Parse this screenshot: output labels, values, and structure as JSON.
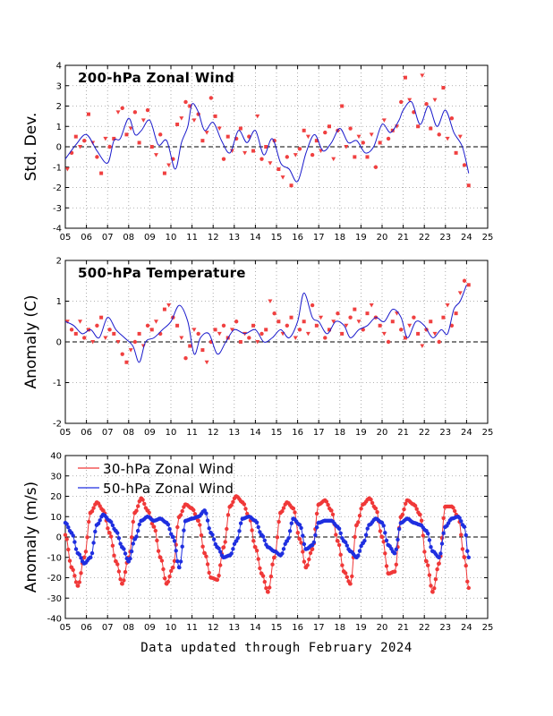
{
  "footer": "Data updated through February 2024",
  "colors": {
    "obs": "#f04040",
    "smooth": "#1a1acc",
    "blue": "#1f2fe0",
    "red": "#f03838"
  },
  "chart_data": [
    {
      "type": "scatter",
      "title": "200-hPa Zonal Wind",
      "xlabel": "",
      "ylabel": "Std. Dev.",
      "xlim": [
        2005,
        2025
      ],
      "ylim": [
        -4,
        4
      ],
      "xticks": [
        "05",
        "06",
        "07",
        "08",
        "09",
        "10",
        "11",
        "12",
        "13",
        "14",
        "15",
        "16",
        "17",
        "18",
        "19",
        "20",
        "21",
        "22",
        "23",
        "24",
        "25"
      ],
      "yticks": [
        -4,
        -3,
        -2,
        -1,
        0,
        1,
        2,
        3,
        4
      ],
      "zero_line": true,
      "grid": true,
      "smoothed_series": {
        "name": "",
        "x": [
          2005.0,
          2005.5,
          2006.0,
          2006.5,
          2007.0,
          2007.3,
          2007.6,
          2008.0,
          2008.3,
          2008.6,
          2009.0,
          2009.4,
          2009.8,
          2010.2,
          2010.5,
          2010.8,
          2011.0,
          2011.3,
          2011.6,
          2012.0,
          2012.4,
          2012.8,
          2013.2,
          2013.6,
          2014.0,
          2014.4,
          2014.8,
          2015.2,
          2015.6,
          2016.0,
          2016.4,
          2016.8,
          2017.2,
          2017.6,
          2018.0,
          2018.4,
          2018.8,
          2019.2,
          2019.6,
          2020.0,
          2020.4,
          2020.8,
          2021.0,
          2021.4,
          2021.8,
          2022.2,
          2022.6,
          2023.0,
          2023.4,
          2023.8,
          2024.1
        ],
        "y": [
          -0.6,
          0.1,
          0.6,
          -0.2,
          -0.8,
          0.3,
          0.4,
          1.4,
          0.6,
          0.8,
          1.3,
          0.1,
          0.3,
          -1.1,
          0.2,
          1.0,
          2.1,
          1.7,
          0.8,
          1.2,
          0.3,
          -0.3,
          0.8,
          0.2,
          0.8,
          -0.4,
          0.4,
          -0.8,
          -1.1,
          -1.7,
          -0.3,
          0.6,
          -0.2,
          0.2,
          0.9,
          0.2,
          0.3,
          -0.3,
          0.0,
          1.1,
          0.7,
          1.3,
          1.8,
          2.2,
          1.1,
          2.0,
          1.0,
          1.8,
          0.7,
          0.0,
          -1.3
        ]
      },
      "observations": {
        "x": [
          2005.1,
          2005.3,
          2005.5,
          2005.7,
          2005.9,
          2006.1,
          2006.3,
          2006.5,
          2006.7,
          2006.9,
          2007.1,
          2007.3,
          2007.5,
          2007.7,
          2007.9,
          2008.1,
          2008.3,
          2008.5,
          2008.7,
          2008.9,
          2009.1,
          2009.3,
          2009.5,
          2009.7,
          2009.9,
          2010.1,
          2010.3,
          2010.5,
          2010.7,
          2010.9,
          2011.1,
          2011.3,
          2011.5,
          2011.7,
          2011.9,
          2012.1,
          2012.3,
          2012.5,
          2012.7,
          2012.9,
          2013.1,
          2013.3,
          2013.5,
          2013.7,
          2013.9,
          2014.1,
          2014.3,
          2014.5,
          2014.7,
          2014.9,
          2015.1,
          2015.3,
          2015.5,
          2015.7,
          2015.9,
          2016.1,
          2016.3,
          2016.5,
          2016.7,
          2016.9,
          2017.1,
          2017.3,
          2017.5,
          2017.7,
          2017.9,
          2018.1,
          2018.3,
          2018.5,
          2018.7,
          2018.9,
          2019.1,
          2019.3,
          2019.5,
          2019.7,
          2019.9,
          2020.1,
          2020.3,
          2020.5,
          2020.7,
          2020.9,
          2021.1,
          2021.3,
          2021.5,
          2021.7,
          2021.9,
          2022.1,
          2022.3,
          2022.5,
          2022.7,
          2022.9,
          2023.1,
          2023.3,
          2023.5,
          2023.7,
          2023.9,
          2024.1
        ],
        "y": [
          -1.1,
          -0.3,
          0.5,
          0.0,
          0.3,
          1.6,
          0.2,
          -0.5,
          -1.3,
          0.4,
          0.0,
          0.4,
          1.7,
          1.9,
          0.6,
          0.9,
          1.7,
          0.2,
          1.3,
          1.8,
          0.0,
          -0.4,
          0.6,
          -1.3,
          -0.9,
          -0.6,
          1.1,
          1.4,
          2.2,
          2.0,
          1.3,
          1.6,
          0.3,
          0.7,
          2.4,
          1.5,
          0.9,
          -0.6,
          0.5,
          -0.2,
          0.4,
          0.9,
          -0.3,
          0.5,
          -0.2,
          1.5,
          -0.6,
          0.0,
          -0.8,
          0.3,
          -1.1,
          -1.5,
          -0.5,
          -1.9,
          -0.4,
          -0.1,
          0.8,
          0.5,
          -0.4,
          0.3,
          -0.2,
          0.7,
          1.0,
          -0.6,
          0.8,
          2.0,
          0.0,
          0.9,
          -0.5,
          0.5,
          0.2,
          -0.5,
          0.6,
          -1.0,
          0.2,
          1.3,
          0.4,
          0.8,
          1.0,
          2.2,
          3.4,
          2.3,
          1.7,
          1.0,
          3.5,
          2.1,
          0.9,
          2.3,
          0.6,
          2.9,
          0.4,
          1.4,
          -0.3,
          0.5,
          -0.9,
          -1.9
        ]
      }
    },
    {
      "type": "scatter",
      "title": "500-hPa Temperature",
      "xlabel": "",
      "ylabel": "Anomaly (C)",
      "xlim": [
        2005,
        2025
      ],
      "ylim": [
        -2,
        2
      ],
      "xticks": [
        "05",
        "06",
        "07",
        "08",
        "09",
        "10",
        "11",
        "12",
        "13",
        "14",
        "15",
        "16",
        "17",
        "18",
        "19",
        "20",
        "21",
        "22",
        "23",
        "24",
        "25"
      ],
      "yticks": [
        -2,
        -1,
        0,
        1,
        2
      ],
      "zero_line": true,
      "grid": true,
      "smoothed_series": {
        "name": "",
        "x": [
          2005.0,
          2005.4,
          2005.8,
          2006.2,
          2006.6,
          2007.0,
          2007.4,
          2007.8,
          2008.2,
          2008.5,
          2008.8,
          2009.2,
          2009.6,
          2010.0,
          2010.4,
          2010.8,
          2011.1,
          2011.4,
          2011.8,
          2012.2,
          2012.6,
          2013.0,
          2013.5,
          2014.0,
          2014.4,
          2014.8,
          2015.2,
          2015.6,
          2016.0,
          2016.3,
          2016.7,
          2017.0,
          2017.4,
          2017.8,
          2018.2,
          2018.5,
          2018.9,
          2019.3,
          2019.7,
          2020.1,
          2020.5,
          2020.9,
          2021.2,
          2021.6,
          2022.0,
          2022.4,
          2022.8,
          2023.1,
          2023.4,
          2023.7,
          2024.0
        ],
        "y": [
          0.5,
          0.4,
          0.2,
          0.3,
          0.1,
          0.6,
          0.3,
          0.1,
          -0.1,
          -0.5,
          0.0,
          0.1,
          0.3,
          0.5,
          0.9,
          0.5,
          -0.3,
          0.1,
          0.2,
          -0.3,
          0.0,
          0.3,
          0.2,
          0.3,
          0.0,
          0.1,
          0.3,
          0.1,
          0.5,
          1.2,
          0.6,
          0.5,
          0.2,
          0.5,
          0.4,
          0.1,
          0.3,
          0.4,
          0.6,
          0.5,
          0.8,
          0.6,
          0.1,
          0.5,
          0.4,
          0.1,
          0.3,
          0.2,
          0.8,
          1.0,
          1.4
        ]
      },
      "observations": {
        "x": [
          2005.1,
          2005.3,
          2005.5,
          2005.7,
          2005.9,
          2006.1,
          2006.3,
          2006.5,
          2006.7,
          2006.9,
          2007.1,
          2007.3,
          2007.5,
          2007.7,
          2007.9,
          2008.1,
          2008.3,
          2008.5,
          2008.7,
          2008.9,
          2009.1,
          2009.3,
          2009.5,
          2009.7,
          2009.9,
          2010.1,
          2010.3,
          2010.5,
          2010.7,
          2010.9,
          2011.1,
          2011.3,
          2011.5,
          2011.7,
          2011.9,
          2012.1,
          2012.3,
          2012.5,
          2012.7,
          2012.9,
          2013.1,
          2013.3,
          2013.5,
          2013.7,
          2013.9,
          2014.1,
          2014.3,
          2014.5,
          2014.7,
          2014.9,
          2015.1,
          2015.3,
          2015.5,
          2015.7,
          2015.9,
          2016.1,
          2016.3,
          2016.5,
          2016.7,
          2016.9,
          2017.1,
          2017.3,
          2017.5,
          2017.7,
          2017.9,
          2018.1,
          2018.3,
          2018.5,
          2018.7,
          2018.9,
          2019.1,
          2019.3,
          2019.5,
          2019.7,
          2019.9,
          2020.1,
          2020.3,
          2020.5,
          2020.7,
          2020.9,
          2021.1,
          2021.3,
          2021.5,
          2021.7,
          2021.9,
          2022.1,
          2022.3,
          2022.5,
          2022.7,
          2022.9,
          2023.1,
          2023.3,
          2023.5,
          2023.7,
          2023.9,
          2024.1
        ],
        "y": [
          0.5,
          0.3,
          0.2,
          0.5,
          0.1,
          0.3,
          0.0,
          0.4,
          0.6,
          0.1,
          0.3,
          0.2,
          0.0,
          -0.3,
          -0.5,
          -0.2,
          0.0,
          0.2,
          -0.1,
          0.4,
          0.3,
          0.5,
          0.2,
          0.8,
          0.9,
          0.6,
          0.4,
          0.1,
          -0.4,
          -0.1,
          0.3,
          0.2,
          -0.2,
          -0.5,
          0.0,
          0.3,
          0.2,
          0.4,
          0.1,
          0.3,
          0.5,
          0.0,
          0.2,
          0.1,
          0.4,
          0.0,
          0.2,
          0.3,
          1.0,
          0.7,
          0.5,
          0.2,
          0.4,
          0.6,
          0.1,
          0.3,
          0.5,
          0.2,
          0.9,
          0.4,
          0.6,
          0.1,
          0.3,
          0.5,
          0.7,
          0.2,
          0.4,
          0.6,
          0.8,
          0.5,
          0.3,
          0.7,
          0.9,
          0.6,
          0.4,
          0.2,
          0.0,
          0.5,
          0.7,
          0.3,
          0.1,
          0.4,
          0.6,
          0.2,
          -0.1,
          0.3,
          0.5,
          0.2,
          0.0,
          0.6,
          0.9,
          0.4,
          0.7,
          1.2,
          1.5,
          1.4
        ]
      }
    },
    {
      "type": "line",
      "title": "",
      "xlabel": "",
      "ylabel": "Anomaly (m/s)",
      "xlim": [
        2005,
        2025
      ],
      "ylim": [
        -40,
        40
      ],
      "xticks": [
        "05",
        "06",
        "07",
        "08",
        "09",
        "10",
        "11",
        "12",
        "13",
        "14",
        "15",
        "16",
        "17",
        "18",
        "19",
        "20",
        "21",
        "22",
        "23",
        "24",
        "25"
      ],
      "yticks": [
        -40,
        -30,
        -20,
        -10,
        0,
        10,
        20,
        30,
        40
      ],
      "zero_line": true,
      "grid": true,
      "legend": "top-left",
      "series": [
        {
          "name": "30-hPa Zonal Wind",
          "x": [
            2005.0,
            2005.3,
            2005.6,
            2005.9,
            2006.2,
            2006.5,
            2006.8,
            2007.1,
            2007.4,
            2007.7,
            2008.0,
            2008.3,
            2008.6,
            2008.9,
            2009.2,
            2009.5,
            2009.8,
            2010.1,
            2010.4,
            2010.7,
            2011.0,
            2011.3,
            2011.6,
            2011.9,
            2012.2,
            2012.5,
            2012.8,
            2013.1,
            2013.4,
            2013.7,
            2014.0,
            2014.3,
            2014.6,
            2014.9,
            2015.2,
            2015.5,
            2015.8,
            2016.1,
            2016.4,
            2016.7,
            2017.0,
            2017.3,
            2017.6,
            2017.9,
            2018.2,
            2018.5,
            2018.8,
            2019.1,
            2019.4,
            2019.7,
            2020.0,
            2020.3,
            2020.6,
            2020.9,
            2021.2,
            2021.5,
            2021.8,
            2022.1,
            2022.4,
            2022.7,
            2023.0,
            2023.3,
            2023.6,
            2023.9,
            2024.1
          ],
          "y": [
            1,
            -15,
            -24,
            -10,
            12,
            17,
            13,
            2,
            -12,
            -23,
            -10,
            12,
            19,
            13,
            5,
            -10,
            -23,
            -15,
            10,
            16,
            14,
            8,
            -8,
            -20,
            -21,
            -5,
            15,
            20,
            17,
            10,
            -5,
            -18,
            -27,
            -10,
            12,
            17,
            14,
            -1,
            -15,
            -6,
            16,
            18,
            13,
            -2,
            -17,
            -23,
            6,
            16,
            19,
            14,
            0,
            -18,
            -17,
            10,
            18,
            16,
            11,
            -12,
            -27,
            -13,
            15,
            15,
            10,
            -10,
            -25
          ]
        },
        {
          "name": "50-hPa Zonal Wind",
          "x": [
            2005.0,
            2005.3,
            2005.6,
            2005.9,
            2006.2,
            2006.5,
            2006.8,
            2007.1,
            2007.4,
            2007.7,
            2008.0,
            2008.3,
            2008.6,
            2008.9,
            2009.2,
            2009.5,
            2009.8,
            2010.1,
            2010.4,
            2010.7,
            2011.0,
            2011.3,
            2011.6,
            2011.9,
            2012.2,
            2012.5,
            2012.8,
            2013.1,
            2013.4,
            2013.7,
            2014.0,
            2014.3,
            2014.6,
            2014.9,
            2015.2,
            2015.5,
            2015.8,
            2016.1,
            2016.4,
            2016.7,
            2017.0,
            2017.3,
            2017.6,
            2017.9,
            2018.2,
            2018.5,
            2018.8,
            2019.1,
            2019.4,
            2019.7,
            2020.0,
            2020.3,
            2020.6,
            2020.9,
            2021.2,
            2021.5,
            2021.8,
            2022.1,
            2022.4,
            2022.7,
            2023.0,
            2023.3,
            2023.6,
            2023.9,
            2024.1
          ],
          "y": [
            7,
            2,
            -8,
            -13,
            -10,
            6,
            11,
            8,
            3,
            -5,
            -12,
            -1,
            8,
            10,
            8,
            9,
            7,
            0,
            -15,
            8,
            9,
            10,
            13,
            2,
            -5,
            -10,
            -9,
            -2,
            9,
            10,
            8,
            1,
            -5,
            -7,
            -9,
            -2,
            9,
            6,
            -6,
            -4,
            7,
            8,
            8,
            5,
            -2,
            -7,
            -10,
            -3,
            6,
            9,
            7,
            -4,
            -8,
            7,
            9,
            7,
            6,
            3,
            -7,
            -10,
            5,
            9,
            10,
            5,
            -10
          ]
        }
      ]
    }
  ]
}
